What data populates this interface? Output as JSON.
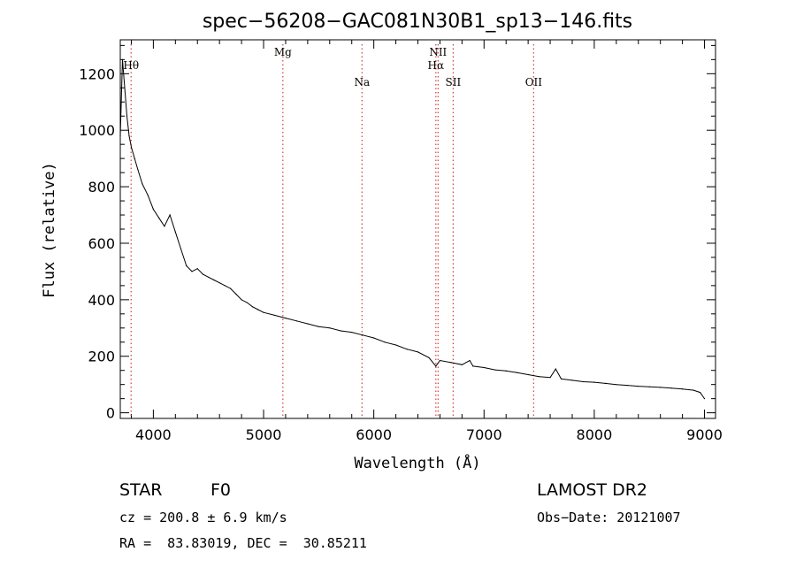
{
  "chart_data": {
    "type": "line",
    "title": "spec−56208−GAC081N30B1_sp13−146.fits",
    "xlabel": "Wavelength (Å)",
    "ylabel": "Flux (relative)",
    "xlim": [
      3700,
      9100
    ],
    "ylim": [
      -20,
      1320
    ],
    "x_ticks": [
      4000,
      5000,
      6000,
      7000,
      8000,
      9000
    ],
    "y_ticks": [
      0,
      200,
      400,
      600,
      800,
      1000,
      1200
    ],
    "grid": false,
    "series": [
      {
        "x": [
          3700,
          3720,
          3740,
          3760,
          3780,
          3800,
          3830,
          3860,
          3900,
          3950,
          4000,
          4050,
          4100,
          4150,
          4200,
          4250,
          4300,
          4350,
          4400,
          4450,
          4500,
          4550,
          4600,
          4650,
          4700,
          4750,
          4800,
          4850,
          4900,
          4950,
          5000,
          5100,
          5200,
          5300,
          5400,
          5500,
          5600,
          5700,
          5800,
          5900,
          6000,
          6100,
          6200,
          6300,
          6400,
          6500,
          6563,
          6600,
          6700,
          6800,
          6870,
          6900,
          7000,
          7100,
          7200,
          7300,
          7400,
          7500,
          7600,
          7650,
          7700,
          7800,
          7900,
          8000,
          8100,
          8200,
          8300,
          8400,
          8500,
          8600,
          8700,
          8800,
          8900,
          8960,
          9000
        ],
        "y": [
          980,
          1250,
          1150,
          1050,
          980,
          940,
          900,
          860,
          810,
          770,
          720,
          690,
          660,
          700,
          640,
          580,
          520,
          500,
          510,
          490,
          480,
          470,
          460,
          450,
          440,
          420,
          400,
          390,
          375,
          365,
          355,
          345,
          335,
          325,
          315,
          305,
          300,
          290,
          285,
          275,
          265,
          250,
          240,
          225,
          215,
          195,
          165,
          185,
          178,
          170,
          185,
          165,
          160,
          152,
          148,
          142,
          135,
          128,
          125,
          155,
          120,
          115,
          110,
          108,
          104,
          100,
          97,
          94,
          92,
          90,
          87,
          84,
          80,
          72,
          50
        ]
      }
    ],
    "lines": [
      {
        "label": "Hθ",
        "x": 3798,
        "row": 1
      },
      {
        "label": "Mg",
        "x": 5175,
        "row": 0
      },
      {
        "label": "Na",
        "x": 5893,
        "row": 2
      },
      {
        "label": "NII",
        "x": 6583,
        "row": 0
      },
      {
        "label": "Hα",
        "x": 6563,
        "row": 1
      },
      {
        "label": "SII",
        "x": 6720,
        "row": 2
      },
      {
        "label": "OII",
        "x": 7450,
        "row": 2
      }
    ],
    "line_color": "#d04040"
  },
  "info": {
    "class_label": "STAR",
    "subclass": "F0",
    "survey": "LAMOST DR2",
    "redshift": "cz = 200.8 ± 6.9 km/s",
    "obs_date": "Obs−Date: 20121007",
    "coords": "RA =  83.83019, DEC =  30.85211"
  }
}
